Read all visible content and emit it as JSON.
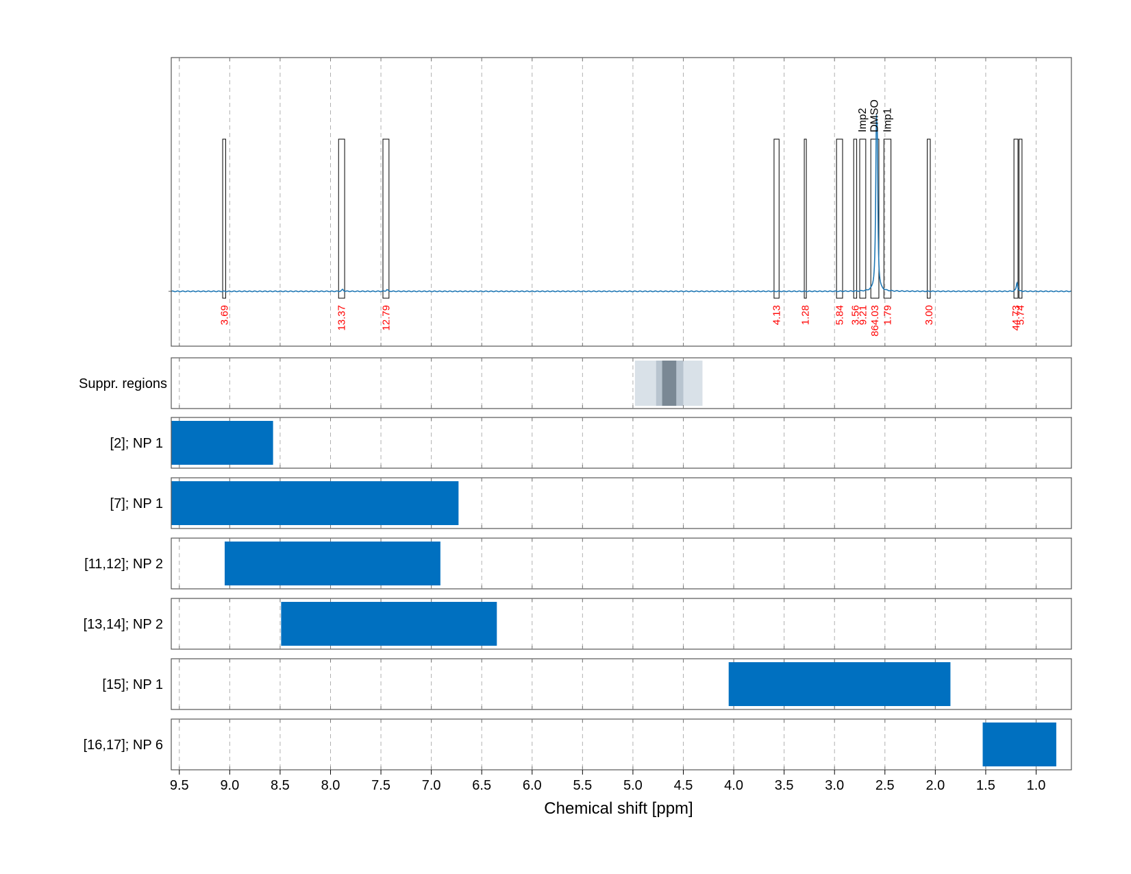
{
  "chart_data": {
    "type": "nmr_spectrum_with_range_bars",
    "xlabel": "Chemical shift [ppm]",
    "xlim": [
      9.58,
      0.65
    ],
    "x_ticks": [
      "9.5",
      "9.0",
      "8.5",
      "8.0",
      "7.5",
      "7.0",
      "6.5",
      "6.0",
      "5.5",
      "5.0",
      "4.5",
      "4.0",
      "3.5",
      "3.0",
      "2.5",
      "2.0",
      "1.5",
      "1.0"
    ],
    "x_tick_values": [
      9.5,
      9.0,
      8.5,
      8.0,
      7.5,
      7.0,
      6.5,
      6.0,
      5.5,
      5.0,
      4.5,
      4.0,
      3.5,
      3.0,
      2.5,
      2.0,
      1.5,
      1.0
    ],
    "grid": true,
    "colors": {
      "spectrum": "#1f77b4",
      "bar": "#0070c0",
      "integral_text": "#ff0000",
      "suppr_light": "#d9e1e8",
      "suppr_mid": "#b8c4cf",
      "suppr_dark": "#7a8894",
      "frame": "#555555",
      "grid": "#b0b0b0"
    },
    "spectrum": {
      "baseline": 0.0,
      "ymax": 1.0,
      "peaks": [
        {
          "x": 2.585,
          "height": 1.0,
          "width": 0.008
        },
        {
          "x": 2.575,
          "height": 0.72,
          "width": 0.006
        },
        {
          "x": 1.19,
          "height": 0.06,
          "width": 0.008
        },
        {
          "x": 7.88,
          "height": 0.012,
          "width": 0.01
        },
        {
          "x": 7.44,
          "height": 0.012,
          "width": 0.01
        }
      ]
    },
    "integration_regions": [
      {
        "left": 9.07,
        "right": 9.04,
        "integral": "3.69"
      },
      {
        "left": 7.92,
        "right": 7.86,
        "integral": "13.37"
      },
      {
        "left": 7.48,
        "right": 7.42,
        "integral": "12.79"
      },
      {
        "left": 3.6,
        "right": 3.55,
        "integral": "4.13"
      },
      {
        "left": 3.3,
        "right": 3.28,
        "integral": "1.28"
      },
      {
        "left": 2.98,
        "right": 2.92,
        "integral": "5.84"
      },
      {
        "left": 2.81,
        "right": 2.78,
        "integral": "3.56"
      },
      {
        "left": 2.75,
        "right": 2.69,
        "integral": "9.21"
      },
      {
        "left": 2.64,
        "right": 2.56,
        "integral": "864.03"
      },
      {
        "left": 2.51,
        "right": 2.44,
        "integral": "1.79"
      },
      {
        "left": 2.08,
        "right": 2.05,
        "integral": "3.00"
      },
      {
        "left": 1.22,
        "right": 1.18,
        "integral": "44.73"
      },
      {
        "left": 1.17,
        "right": 1.14,
        "integral": "5.74"
      }
    ],
    "peak_annotations": [
      {
        "x": 2.73,
        "label": "Imp2"
      },
      {
        "x": 2.61,
        "label": "DMSO"
      },
      {
        "x": 2.48,
        "label": "Imp1"
      }
    ],
    "suppression_label": "Suppr. regions",
    "suppression_regions": [
      {
        "left": 4.98,
        "right": 4.31,
        "shade": "light"
      },
      {
        "left": 4.77,
        "right": 4.5,
        "shade": "mid"
      },
      {
        "left": 4.71,
        "right": 4.57,
        "shade": "dark"
      }
    ],
    "range_rows": [
      {
        "label": "[2]; NP 1",
        "left": 9.58,
        "right": 8.57
      },
      {
        "label": "[7]; NP 1",
        "left": 9.58,
        "right": 6.73
      },
      {
        "label": "[11,12]; NP 2",
        "left": 9.05,
        "right": 6.91
      },
      {
        "label": "[13,14]; NP 2",
        "left": 8.49,
        "right": 6.35
      },
      {
        "label": "[15]; NP 1",
        "left": 4.05,
        "right": 1.85
      },
      {
        "label": "[16,17]; NP 6",
        "left": 1.53,
        "right": 0.8
      }
    ]
  }
}
